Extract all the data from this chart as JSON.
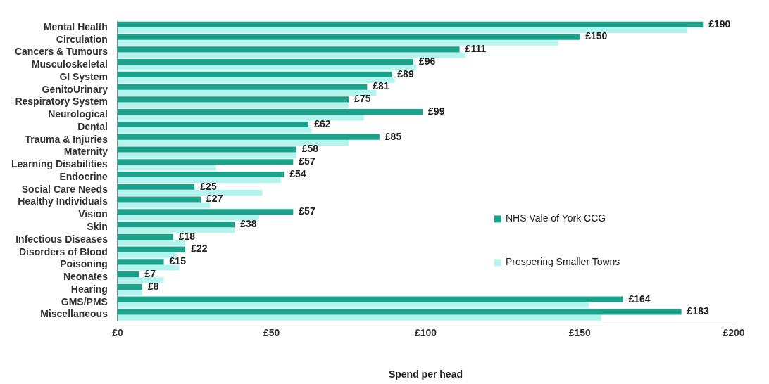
{
  "chart_data": {
    "type": "bar",
    "orientation": "horizontal",
    "xlabel": "Spend per head",
    "categories": [
      "Mental Health",
      "Circulation",
      "Cancers & Tumours",
      "Musculoskeletal",
      "GI System",
      "GenitoUrinary",
      "Respiratory System",
      "Neurological",
      "Dental",
      "Trauma & Injuries",
      "Maternity",
      "Learning Disabilities",
      "Endocrine",
      "Social Care Needs",
      "Healthy Individuals",
      "Vision",
      "Skin",
      "Infectious Diseases",
      "Disorders of Blood",
      "Poisoning",
      "Neonates",
      "Hearing",
      "GMS/PMS",
      "Miscellaneous"
    ],
    "series": [
      {
        "name": "NHS Vale of York CCG",
        "color": "#1aa38a",
        "values": [
          190,
          150,
          111,
          96,
          89,
          81,
          75,
          99,
          62,
          85,
          58,
          57,
          54,
          25,
          27,
          57,
          38,
          18,
          22,
          15,
          7,
          8,
          164,
          183
        ],
        "value_labels": [
          "£190",
          "£150",
          "£111",
          "£96",
          "£89",
          "£81",
          "£75",
          "£99",
          "£62",
          "£85",
          "£58",
          "£57",
          "£54",
          "£25",
          "£27",
          "£57",
          "£38",
          "£18",
          "£22",
          "£15",
          "£7",
          "£8",
          "£164",
          "£183"
        ]
      },
      {
        "name": "Prospering Smaller Towns",
        "color": "#b3f5ee",
        "values": [
          185,
          143,
          113,
          97,
          90,
          84,
          75,
          80,
          63,
          75,
          58,
          32,
          53,
          47,
          30,
          46,
          38,
          22,
          19,
          20,
          15,
          8,
          153,
          157
        ]
      }
    ],
    "xlim": [
      0,
      200
    ],
    "xticks": [
      {
        "value": 0,
        "label": "£0"
      },
      {
        "value": 50,
        "label": "£50"
      },
      {
        "value": 100,
        "label": "£100"
      },
      {
        "value": 150,
        "label": "£150"
      },
      {
        "value": 200,
        "label": "£200"
      }
    ],
    "grid": false,
    "legend": "right"
  }
}
